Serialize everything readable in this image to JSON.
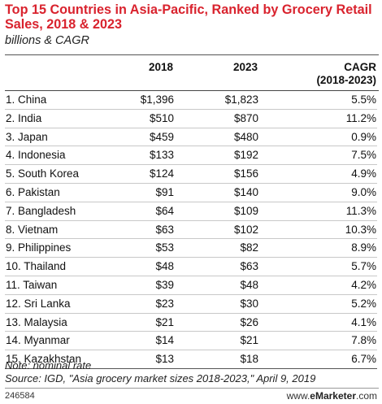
{
  "title": "Top 15 Countries in Asia-Pacific, Ranked by Grocery Retail Sales, 2018 & 2023",
  "subtitle": "billions & CAGR",
  "columns": {
    "col_2018": "2018",
    "col_2023": "2023",
    "col_cagr": "CAGR",
    "col_cagr_sub": "(2018-2023)"
  },
  "chart_data": {
    "type": "table",
    "title": "Top 15 Countries in Asia-Pacific, Ranked by Grocery Retail Sales, 2018 & 2023",
    "subtitle": "billions & CAGR",
    "columns": [
      "2018",
      "2023",
      "CAGR (2018-2023)"
    ],
    "rows": [
      {
        "country": "1. China",
        "v2018": "$1,396",
        "v2023": "$1,823",
        "cagr": "5.5%"
      },
      {
        "country": "2. India",
        "v2018": "$510",
        "v2023": "$870",
        "cagr": "11.2%"
      },
      {
        "country": "3. Japan",
        "v2018": "$459",
        "v2023": "$480",
        "cagr": "0.9%"
      },
      {
        "country": "4. Indonesia",
        "v2018": "$133",
        "v2023": "$192",
        "cagr": "7.5%"
      },
      {
        "country": "5. South Korea",
        "v2018": "$124",
        "v2023": "$156",
        "cagr": "4.9%"
      },
      {
        "country": "6. Pakistan",
        "v2018": "$91",
        "v2023": "$140",
        "cagr": "9.0%"
      },
      {
        "country": "7. Bangladesh",
        "v2018": "$64",
        "v2023": "$109",
        "cagr": "11.3%"
      },
      {
        "country": "8. Vietnam",
        "v2018": "$63",
        "v2023": "$102",
        "cagr": "10.3%"
      },
      {
        "country": "9. Philippines",
        "v2018": "$53",
        "v2023": "$82",
        "cagr": "8.9%"
      },
      {
        "country": "10. Thailand",
        "v2018": "$48",
        "v2023": "$63",
        "cagr": "5.7%"
      },
      {
        "country": "11. Taiwan",
        "v2018": "$39",
        "v2023": "$48",
        "cagr": "4.2%"
      },
      {
        "country": "12. Sri Lanka",
        "v2018": "$23",
        "v2023": "$30",
        "cagr": "5.2%"
      },
      {
        "country": "13. Malaysia",
        "v2018": "$21",
        "v2023": "$26",
        "cagr": "4.1%"
      },
      {
        "country": "14. Myanmar",
        "v2018": "$14",
        "v2023": "$21",
        "cagr": "7.8%"
      },
      {
        "country": "15. Kazakhstan",
        "v2018": "$13",
        "v2023": "$18",
        "cagr": "6.7%"
      }
    ]
  },
  "note": "Note: nominal rate",
  "source": "Source: IGD, \"Asia grocery market sizes 2018-2023,\" April 9, 2019",
  "footer": {
    "chart_id": "246584",
    "brand_prefix": "www.",
    "brand_name": "eMarketer",
    "brand_suffix": ".com"
  },
  "colors": {
    "title": "#d9232e"
  }
}
